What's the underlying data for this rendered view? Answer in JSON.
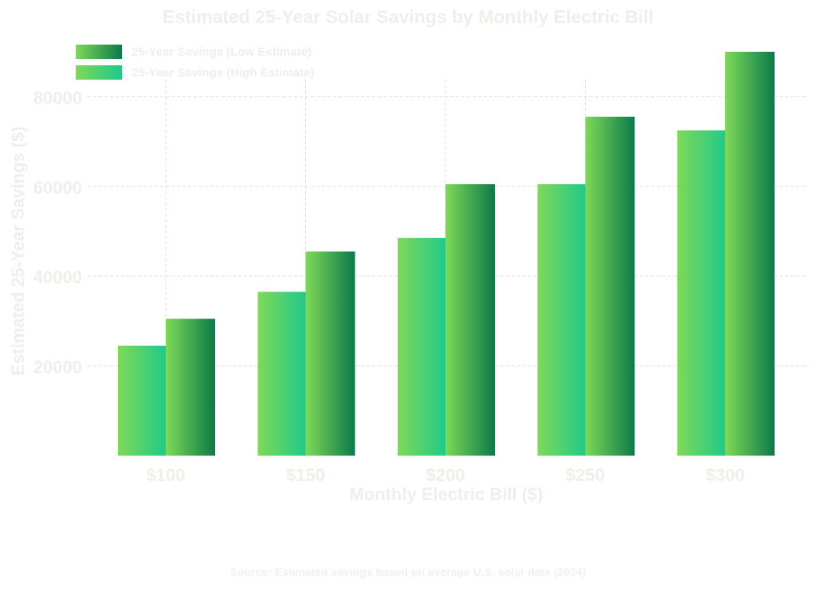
{
  "chart_data": {
    "type": "bar",
    "title": "Estimated 25-Year Solar Savings by Monthly Electric Bill",
    "xlabel": "Monthly Electric Bill ($)",
    "ylabel": "Estimated 25-Year Savings ($)",
    "categories": [
      "$100",
      "$150",
      "$200",
      "$250",
      "$300"
    ],
    "series": [
      {
        "name": "25-Year Savings (Low Estimate)",
        "values": [
          24500,
          36500,
          48500,
          60500,
          72500
        ]
      },
      {
        "name": "25-Year Savings (High Estimate)",
        "values": [
          30500,
          45500,
          60500,
          75500,
          90000
        ]
      }
    ],
    "yticks": [
      20000,
      40000,
      60000,
      80000
    ],
    "ylim": [
      0,
      90000
    ],
    "grid": true,
    "legend_position": "top-left",
    "source": "Source: Estimated savings based on average U.S. solar data (2024)"
  },
  "colors": {
    "light_green": "#7ed957",
    "mint_green": "#1ec98b",
    "dark_green": "#0b7a49",
    "text": "#f1eeea",
    "grid": "#dddddd"
  }
}
